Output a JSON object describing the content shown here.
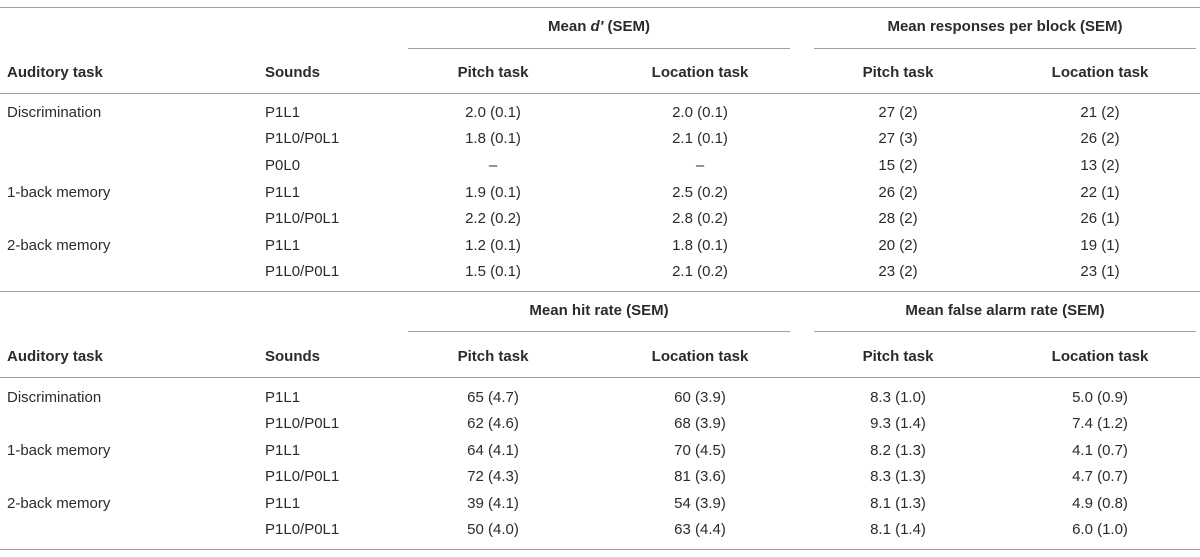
{
  "sections": [
    {
      "group1_header": [
        "Mean ",
        "d′",
        " (SEM)"
      ],
      "group2_header": "Mean responses per block (SEM)",
      "col_headers": [
        "Auditory task",
        "Sounds",
        "Pitch task",
        "Location task",
        "Pitch task",
        "Location task"
      ],
      "rows": [
        [
          "Discrimination",
          "P1L1",
          "2.0 (0.1)",
          "2.0 (0.1)",
          "27 (2)",
          "21 (2)"
        ],
        [
          "",
          "P1L0/P0L1",
          "1.8 (0.1)",
          "2.1 (0.1)",
          "27 (3)",
          "26 (2)"
        ],
        [
          "",
          "P0L0",
          "–",
          "–",
          "15 (2)",
          "13 (2)"
        ],
        [
          "1-back memory",
          "P1L1",
          "1.9 (0.1)",
          "2.5 (0.2)",
          "26 (2)",
          "22 (1)"
        ],
        [
          "",
          "P1L0/P0L1",
          "2.2 (0.2)",
          "2.8 (0.2)",
          "28 (2)",
          "26 (1)"
        ],
        [
          "2-back memory",
          "P1L1",
          "1.2 (0.1)",
          "1.8 (0.1)",
          "20 (2)",
          "19 (1)"
        ],
        [
          "",
          "P1L0/P0L1",
          "1.5 (0.1)",
          "2.1 (0.2)",
          "23 (2)",
          "23 (1)"
        ]
      ]
    },
    {
      "group1_header": [
        "Mean hit rate (SEM)",
        "",
        ""
      ],
      "group2_header": "Mean false alarm rate (SEM)",
      "col_headers": [
        "Auditory task",
        "Sounds",
        "Pitch task",
        "Location task",
        "Pitch task",
        "Location task"
      ],
      "rows": [
        [
          "Discrimination",
          "P1L1",
          "65 (4.7)",
          "60 (3.9)",
          "8.3 (1.0)",
          "5.0 (0.9)"
        ],
        [
          "",
          "P1L0/P0L1",
          "62 (4.6)",
          "68 (3.9)",
          "9.3 (1.4)",
          "7.4 (1.2)"
        ],
        [
          "1-back memory",
          "P1L1",
          "64 (4.1)",
          "70 (4.5)",
          "8.2 (1.3)",
          "4.1 (0.7)"
        ],
        [
          "",
          "P1L0/P0L1",
          "72 (4.3)",
          "81 (3.6)",
          "8.3 (1.3)",
          "4.7 (0.7)"
        ],
        [
          "2-back memory",
          "P1L1",
          "39 (4.1)",
          "54 (3.9)",
          "8.1 (1.3)",
          "4.9 (0.8)"
        ],
        [
          "",
          "P1L0/P0L1",
          "50 (4.0)",
          "63 (4.4)",
          "8.1 (1.4)",
          "6.0 (1.0)"
        ]
      ]
    }
  ]
}
